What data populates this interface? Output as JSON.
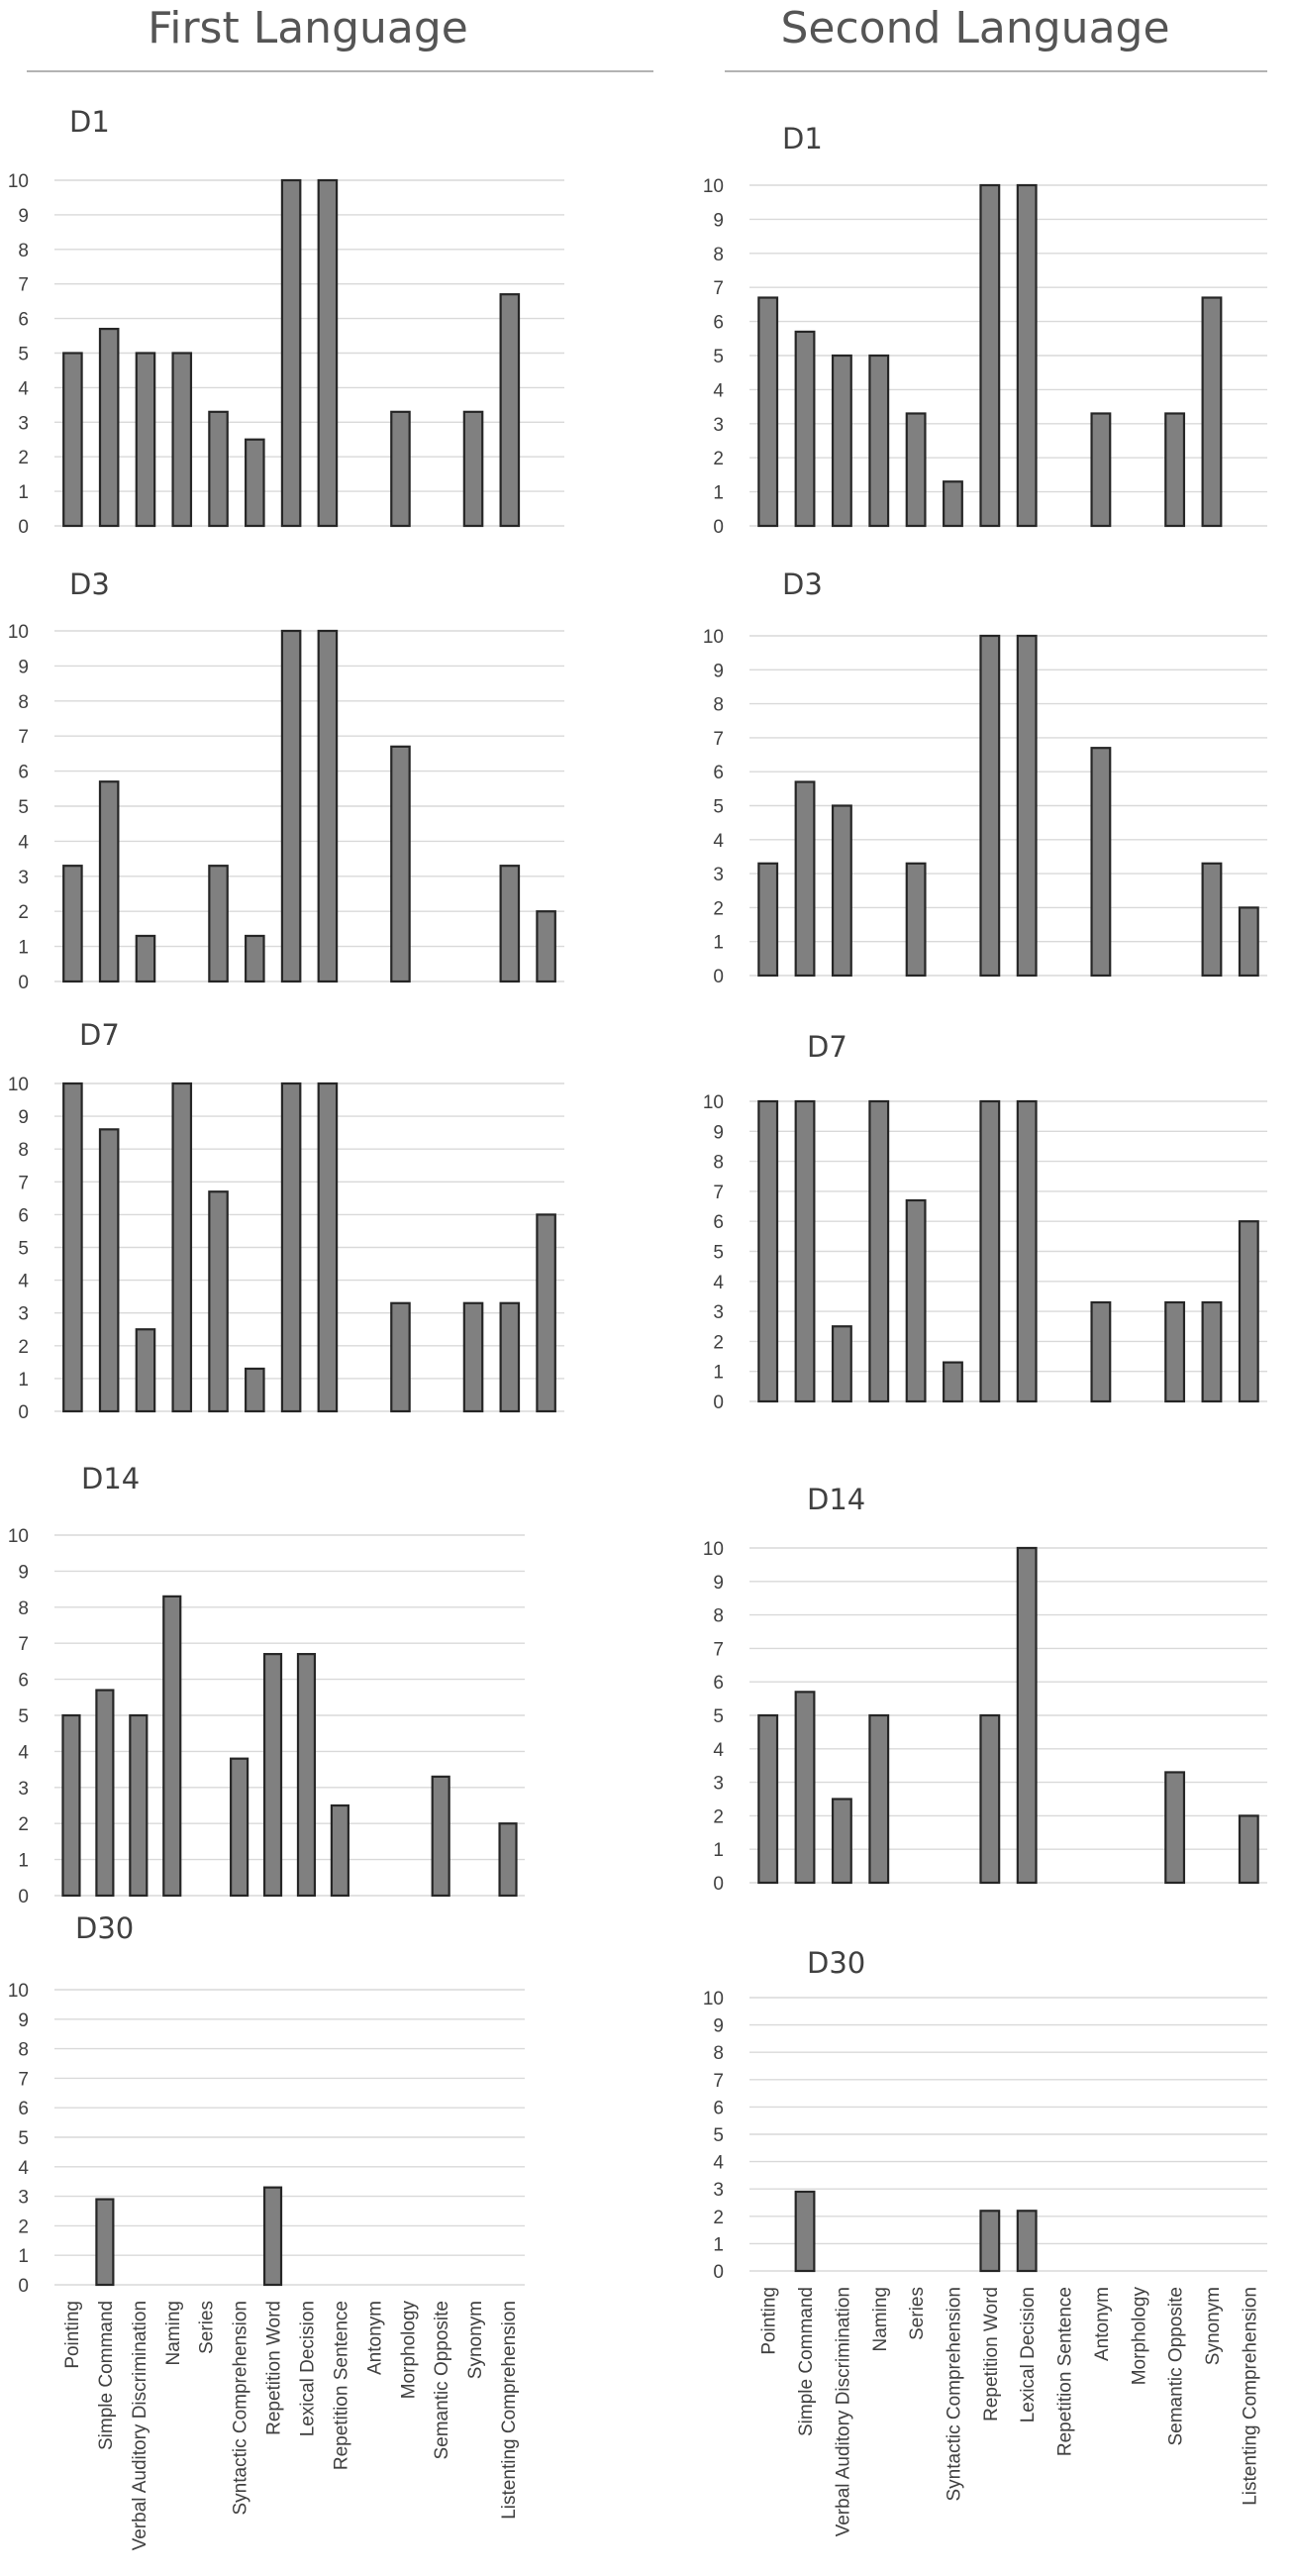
{
  "columns": [
    {
      "title": "First Language"
    },
    {
      "title": "Second Language"
    }
  ],
  "chart_data": [
    {
      "type": "bar",
      "title": "D1",
      "column": "First Language",
      "ylim": [
        0,
        10
      ],
      "yticks": [
        0,
        1,
        2,
        3,
        4,
        5,
        6,
        7,
        8,
        9,
        10
      ],
      "categories": [
        "Pointing",
        "Simple Command",
        "Verbal Auditory Discrimination",
        "Naming",
        "Series",
        "Syntactic Comprehension",
        "Repetition Word",
        "Lexical Decision",
        "Repetition Sentence",
        "Antonym",
        "Morphology",
        "Semantic Opposite",
        "Synonym",
        "Listenting Comprehension"
      ],
      "values": [
        5,
        5.7,
        5,
        5,
        3.3,
        2.5,
        10,
        10,
        0,
        3.3,
        0,
        3.3,
        6.7,
        0
      ]
    },
    {
      "type": "bar",
      "title": "D1",
      "column": "Second Language",
      "ylim": [
        0,
        10
      ],
      "yticks": [
        0,
        1,
        2,
        3,
        4,
        5,
        6,
        7,
        8,
        9,
        10
      ],
      "categories": [
        "Pointing",
        "Simple Command",
        "Verbal Auditory Discrimination",
        "Naming",
        "Series",
        "Syntactic Comprehension",
        "Repetition Word",
        "Lexical Decision",
        "Repetition Sentence",
        "Antonym",
        "Morphology",
        "Semantic Opposite",
        "Synonym",
        "Listenting Comprehension"
      ],
      "values": [
        6.7,
        5.7,
        5,
        5,
        3.3,
        1.3,
        10,
        10,
        0,
        3.3,
        0,
        3.3,
        6.7,
        0
      ]
    },
    {
      "type": "bar",
      "title": "D3",
      "column": "First Language",
      "ylim": [
        0,
        10
      ],
      "yticks": [
        0,
        1,
        2,
        3,
        4,
        5,
        6,
        7,
        8,
        9,
        10
      ],
      "categories": [
        "Pointing",
        "Simple Command",
        "Verbal Auditory Discrimination",
        "Naming",
        "Series",
        "Syntactic Comprehension",
        "Repetition Word",
        "Lexical Decision",
        "Repetition Sentence",
        "Antonym",
        "Morphology",
        "Semantic Opposite",
        "Synonym",
        "Listenting Comprehension"
      ],
      "values": [
        3.3,
        5.7,
        1.3,
        0,
        3.3,
        1.3,
        10,
        10,
        0,
        6.7,
        0,
        0,
        3.3,
        2
      ]
    },
    {
      "type": "bar",
      "title": "D3",
      "column": "Second Language",
      "ylim": [
        0,
        10
      ],
      "yticks": [
        0,
        1,
        2,
        3,
        4,
        5,
        6,
        7,
        8,
        9,
        10
      ],
      "categories": [
        "Pointing",
        "Simple Command",
        "Verbal Auditory Discrimination",
        "Naming",
        "Series",
        "Syntactic Comprehension",
        "Repetition Word",
        "Lexical Decision",
        "Repetition Sentence",
        "Antonym",
        "Morphology",
        "Semantic Opposite",
        "Synonym",
        "Listenting Comprehension"
      ],
      "values": [
        3.3,
        5.7,
        5,
        0,
        3.3,
        0,
        10,
        10,
        0,
        6.7,
        0,
        0,
        3.3,
        2
      ]
    },
    {
      "type": "bar",
      "title": "D7",
      "column": "First Language",
      "ylim": [
        0,
        10
      ],
      "yticks": [
        0,
        1,
        2,
        3,
        4,
        5,
        6,
        7,
        8,
        9,
        10
      ],
      "categories": [
        "Pointing",
        "Simple Command",
        "Verbal Auditory Discrimination",
        "Naming",
        "Series",
        "Syntactic Comprehension",
        "Repetition Word",
        "Lexical Decision",
        "Repetition Sentence",
        "Antonym",
        "Morphology",
        "Semantic Opposite",
        "Synonym",
        "Listenting Comprehension"
      ],
      "values": [
        10,
        8.6,
        2.5,
        10,
        6.7,
        1.3,
        10,
        10,
        0,
        3.3,
        0,
        3.3,
        3.3,
        6
      ]
    },
    {
      "type": "bar",
      "title": "D7",
      "column": "Second Language",
      "ylim": [
        0,
        10
      ],
      "yticks": [
        0,
        1,
        2,
        3,
        4,
        5,
        6,
        7,
        8,
        9,
        10
      ],
      "categories": [
        "Pointing",
        "Simple Command",
        "Verbal Auditory Discrimination",
        "Naming",
        "Series",
        "Syntactic Comprehension",
        "Repetition Word",
        "Lexical Decision",
        "Repetition Sentence",
        "Antonym",
        "Morphology",
        "Semantic Opposite",
        "Synonym",
        "Listenting Comprehension"
      ],
      "values": [
        10,
        10,
        2.5,
        10,
        6.7,
        1.3,
        10,
        10,
        0,
        3.3,
        0,
        3.3,
        3.3,
        6
      ]
    },
    {
      "type": "bar",
      "title": "D14",
      "column": "First Language",
      "ylim": [
        0,
        10
      ],
      "yticks": [
        0,
        1,
        2,
        3,
        4,
        5,
        6,
        7,
        8,
        9,
        10
      ],
      "categories": [
        "Pointing",
        "Simple Command",
        "Verbal Auditory Discrimination",
        "Naming",
        "Series",
        "Syntactic Comprehension",
        "Repetition Word",
        "Lexical Decision",
        "Repetition Sentence",
        "Antonym",
        "Morphology",
        "Semantic Opposite",
        "Synonym",
        "Listenting Comprehension"
      ],
      "values": [
        5,
        5.7,
        5,
        8.3,
        0,
        3.8,
        6.7,
        6.7,
        2.5,
        0,
        0,
        3.3,
        0,
        2
      ]
    },
    {
      "type": "bar",
      "title": "D14",
      "column": "Second Language",
      "ylim": [
        0,
        10
      ],
      "yticks": [
        0,
        1,
        2,
        3,
        4,
        5,
        6,
        7,
        8,
        9,
        10
      ],
      "categories": [
        "Pointing",
        "Simple Command",
        "Verbal Auditory Discrimination",
        "Naming",
        "Series",
        "Syntactic Comprehension",
        "Repetition Word",
        "Lexical Decision",
        "Repetition Sentence",
        "Antonym",
        "Morphology",
        "Semantic Opposite",
        "Synonym",
        "Listenting Comprehension"
      ],
      "values": [
        5,
        5.7,
        2.5,
        5,
        0,
        0,
        5,
        10,
        0,
        0,
        0,
        3.3,
        0,
        2
      ]
    },
    {
      "type": "bar",
      "title": "D30",
      "column": "First Language",
      "ylim": [
        0,
        10
      ],
      "yticks": [
        0,
        1,
        2,
        3,
        4,
        5,
        6,
        7,
        8,
        9,
        10
      ],
      "categories": [
        "Pointing",
        "Simple Command",
        "Verbal Auditory Discrimination",
        "Naming",
        "Series",
        "Syntactic Comprehension",
        "Repetition Word",
        "Lexical Decision",
        "Repetition Sentence",
        "Antonym",
        "Morphology",
        "Semantic Opposite",
        "Synonym",
        "Listenting Comprehension"
      ],
      "values": [
        0,
        2.9,
        0,
        0,
        0,
        0,
        3.3,
        0,
        0,
        0,
        0,
        0,
        0,
        0
      ]
    },
    {
      "type": "bar",
      "title": "D30",
      "column": "Second Language",
      "ylim": [
        0,
        10
      ],
      "yticks": [
        0,
        1,
        2,
        3,
        4,
        5,
        6,
        7,
        8,
        9,
        10
      ],
      "categories": [
        "Pointing",
        "Simple Command",
        "Verbal Auditory Discrimination",
        "Naming",
        "Series",
        "Syntactic Comprehension",
        "Repetition Word",
        "Lexical Decision",
        "Repetition Sentence",
        "Antonym",
        "Morphology",
        "Semantic Opposite",
        "Synonym",
        "Listenting Comprehension"
      ],
      "values": [
        0,
        2.9,
        0,
        0,
        0,
        0,
        2.2,
        2.2,
        0,
        0,
        0,
        0,
        0,
        0
      ]
    }
  ],
  "colors": {
    "bar_fill": "#808080",
    "bar_stroke": "#262626",
    "grid": "#d9d9d9",
    "text": "#404040"
  }
}
